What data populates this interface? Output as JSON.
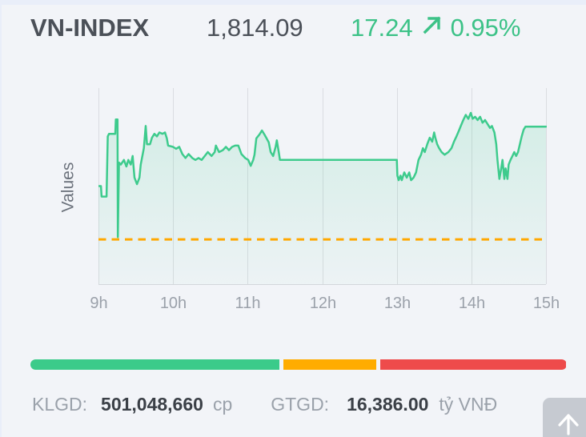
{
  "header": {
    "title": "VN-INDEX",
    "value": "1,814.09",
    "change": "17.24",
    "change_percent": "0.95%",
    "trend_icon": "arrow-up-right"
  },
  "chart_data": {
    "type": "area",
    "ylabel": "Values",
    "x_ticks": [
      "9h",
      "10h",
      "11h",
      "12h",
      "13h",
      "14h",
      "15h"
    ],
    "x_range_minutes": [
      0,
      360
    ],
    "y_render_range": [
      1790,
      1820
    ],
    "reference_value": 1796.85,
    "close_value": 1814.09,
    "grid": true,
    "points": [
      [
        0,
        1805.0
      ],
      [
        2,
        1805.0
      ],
      [
        2.5,
        1803.4
      ],
      [
        6.5,
        1803.4
      ],
      [
        7.5,
        1812.6
      ],
      [
        8.5,
        1813.0
      ],
      [
        13.5,
        1813.0
      ],
      [
        14,
        1815.2
      ],
      [
        15.3,
        1815.2
      ],
      [
        15.6,
        1797.2
      ],
      [
        16.5,
        1808.6
      ],
      [
        18,
        1808.3
      ],
      [
        20.5,
        1809.0
      ],
      [
        22.5,
        1808.0
      ],
      [
        24,
        1809.0
      ],
      [
        26,
        1808.3
      ],
      [
        27.5,
        1809.6
      ],
      [
        29,
        1806.3
      ],
      [
        31,
        1805.3
      ],
      [
        33,
        1806.3
      ],
      [
        34,
        1808.3
      ],
      [
        36.5,
        1810.8
      ],
      [
        38,
        1814.2
      ],
      [
        39,
        1811.4
      ],
      [
        41.5,
        1811.4
      ],
      [
        43,
        1812.4
      ],
      [
        45,
        1813.0
      ],
      [
        47,
        1812.6
      ],
      [
        49,
        1813.2
      ],
      [
        51.5,
        1813.0
      ],
      [
        53.5,
        1813.2
      ],
      [
        55,
        1812.3
      ],
      [
        56,
        1811.2
      ],
      [
        60,
        1811.0
      ],
      [
        62.5,
        1810.7
      ],
      [
        65,
        1811.0
      ],
      [
        67.5,
        1809.9
      ],
      [
        70,
        1809.3
      ],
      [
        72.5,
        1809.9
      ],
      [
        75.5,
        1809.3
      ],
      [
        78,
        1809.0
      ],
      [
        80.5,
        1809.3
      ],
      [
        83,
        1809.0
      ],
      [
        85.5,
        1809.6
      ],
      [
        88,
        1810.2
      ],
      [
        91,
        1809.6
      ],
      [
        93.5,
        1810.2
      ],
      [
        94.5,
        1811.2
      ],
      [
        97,
        1810.2
      ],
      [
        100,
        1810.5
      ],
      [
        102.5,
        1811.0
      ],
      [
        105,
        1810.5
      ],
      [
        107.5,
        1811.0
      ],
      [
        110,
        1811.2
      ],
      [
        112.5,
        1811.2
      ],
      [
        115,
        1809.9
      ],
      [
        118,
        1809.3
      ],
      [
        120.5,
        1809.0
      ],
      [
        122.5,
        1808.1
      ],
      [
        124.5,
        1809.0
      ],
      [
        125.5,
        1809.8
      ],
      [
        127,
        1812.3
      ],
      [
        129.5,
        1812.9
      ],
      [
        131.5,
        1813.5
      ],
      [
        133.5,
        1812.9
      ],
      [
        135,
        1812.4
      ],
      [
        137,
        1811.7
      ],
      [
        138.5,
        1810.2
      ],
      [
        140.5,
        1809.6
      ],
      [
        142.5,
        1811.0
      ],
      [
        143.5,
        1812.0
      ],
      [
        145,
        1810.2
      ],
      [
        146,
        1809.0
      ],
      [
        240,
        1809.0
      ],
      [
        240.5,
        1806.6
      ],
      [
        241.5,
        1805.9
      ],
      [
        243,
        1806.6
      ],
      [
        244,
        1805.9
      ],
      [
        246,
        1807.1
      ],
      [
        248,
        1806.3
      ],
      [
        250,
        1807.1
      ],
      [
        251.5,
        1805.9
      ],
      [
        253.5,
        1806.3
      ],
      [
        255.5,
        1807.1
      ],
      [
        257.5,
        1809.0
      ],
      [
        259.5,
        1809.8
      ],
      [
        261,
        1810.8
      ],
      [
        262.5,
        1810.2
      ],
      [
        264.5,
        1811.4
      ],
      [
        266.5,
        1812.4
      ],
      [
        268.5,
        1811.8
      ],
      [
        270,
        1813.2
      ],
      [
        271,
        1812.4
      ],
      [
        272.5,
        1811.4
      ],
      [
        274,
        1810.8
      ],
      [
        276,
        1810.2
      ],
      [
        278.5,
        1809.8
      ],
      [
        281.5,
        1810.2
      ],
      [
        284,
        1810.8
      ],
      [
        286,
        1811.8
      ],
      [
        288,
        1812.6
      ],
      [
        290,
        1813.5
      ],
      [
        291.5,
        1814.2
      ],
      [
        293.5,
        1815.1
      ],
      [
        295.5,
        1815.9
      ],
      [
        297.5,
        1815.3
      ],
      [
        299.5,
        1816.2
      ],
      [
        301,
        1815.3
      ],
      [
        303,
        1815.6
      ],
      [
        305,
        1815.1
      ],
      [
        307,
        1815.6
      ],
      [
        309,
        1814.7
      ],
      [
        311,
        1815.1
      ],
      [
        313,
        1814.5
      ],
      [
        315,
        1813.9
      ],
      [
        316.5,
        1814.2
      ],
      [
        318.5,
        1813.2
      ],
      [
        320,
        1811.4
      ],
      [
        321,
        1809.0
      ],
      [
        322.5,
        1806.1
      ],
      [
        324,
        1807.7
      ],
      [
        325,
        1809.0
      ],
      [
        326.5,
        1806.1
      ],
      [
        327.5,
        1807.7
      ],
      [
        329,
        1806.1
      ],
      [
        330,
        1808.3
      ],
      [
        331.5,
        1809.0
      ],
      [
        333,
        1809.6
      ],
      [
        334.5,
        1810.2
      ],
      [
        336,
        1809.6
      ],
      [
        337.5,
        1810.2
      ],
      [
        339,
        1811.4
      ],
      [
        340.5,
        1812.6
      ],
      [
        342,
        1813.6
      ],
      [
        343.5,
        1814.1
      ],
      [
        360,
        1814.1
      ]
    ]
  },
  "breadth_bar": {
    "segments": [
      {
        "name": "advancers",
        "color": "#3bcb8a",
        "pct": 46.4
      },
      {
        "name": "unchanged",
        "color": "#ffac00",
        "pct": 17.3
      },
      {
        "name": "decliners",
        "color": "#ee4b4b",
        "pct": 34.6
      }
    ]
  },
  "stats": {
    "klgd_label": "KLGD:",
    "klgd_value": "501,048,660",
    "klgd_unit": "cp",
    "gtgd_label": "GTGD:",
    "gtgd_value": "16,386.00",
    "gtgd_unit": "tỷ VNĐ"
  },
  "scroll_top": {
    "icon": "arrow-up"
  },
  "colors": {
    "accent_green": "#3cc287",
    "line_green": "#3ecb8d",
    "ref_orange": "#ffa801",
    "grid_gray": "#dadce1",
    "axis_gray": "#d3d6db"
  }
}
